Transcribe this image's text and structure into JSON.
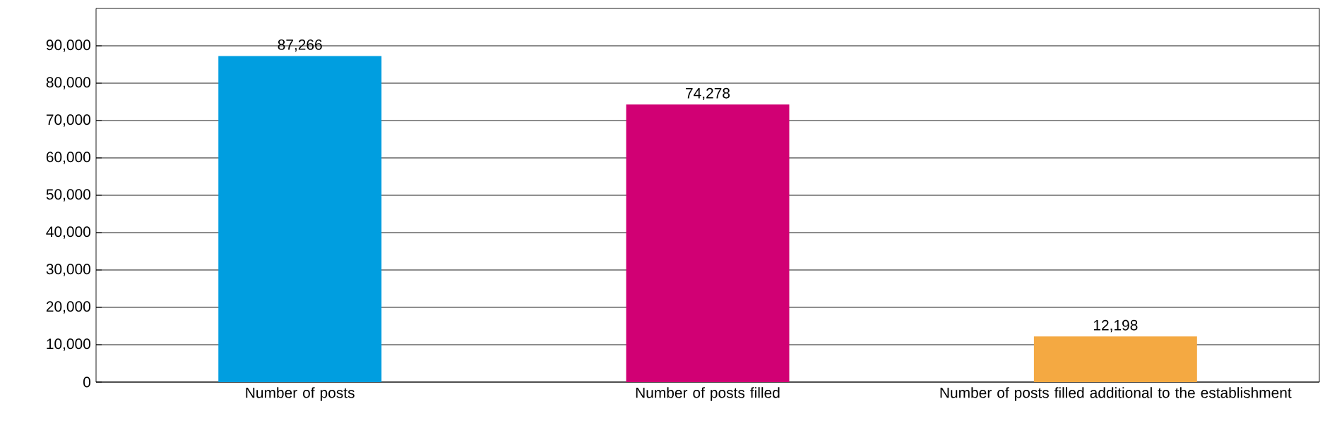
{
  "chart_data": {
    "type": "bar",
    "categories": [
      "Number of posts",
      "Number of posts filled",
      "Number of posts filled additional to the establishment"
    ],
    "values": [
      87266,
      74278,
      12198
    ],
    "colors": [
      "#009ee0",
      "#d10074",
      "#f4a942"
    ],
    "value_labels": [
      "87,266",
      "74,278",
      "12,198"
    ],
    "ylim": [
      0,
      100000
    ],
    "yticks": [
      0,
      {
        "value": 10000,
        "label": "10,000"
      },
      {
        "value": 20000,
        "label": "20,000"
      },
      {
        "value": 30000,
        "label": "30,000"
      },
      {
        "value": 40000,
        "label": "40,000"
      },
      {
        "value": 50000,
        "label": "50,000"
      },
      {
        "value": 60000,
        "label": "60,000"
      },
      {
        "value": 70000,
        "label": "70,000"
      },
      {
        "value": 80000,
        "label": "80,000"
      },
      {
        "value": 90000,
        "label": "90,000"
      }
    ],
    "grid": "y"
  }
}
